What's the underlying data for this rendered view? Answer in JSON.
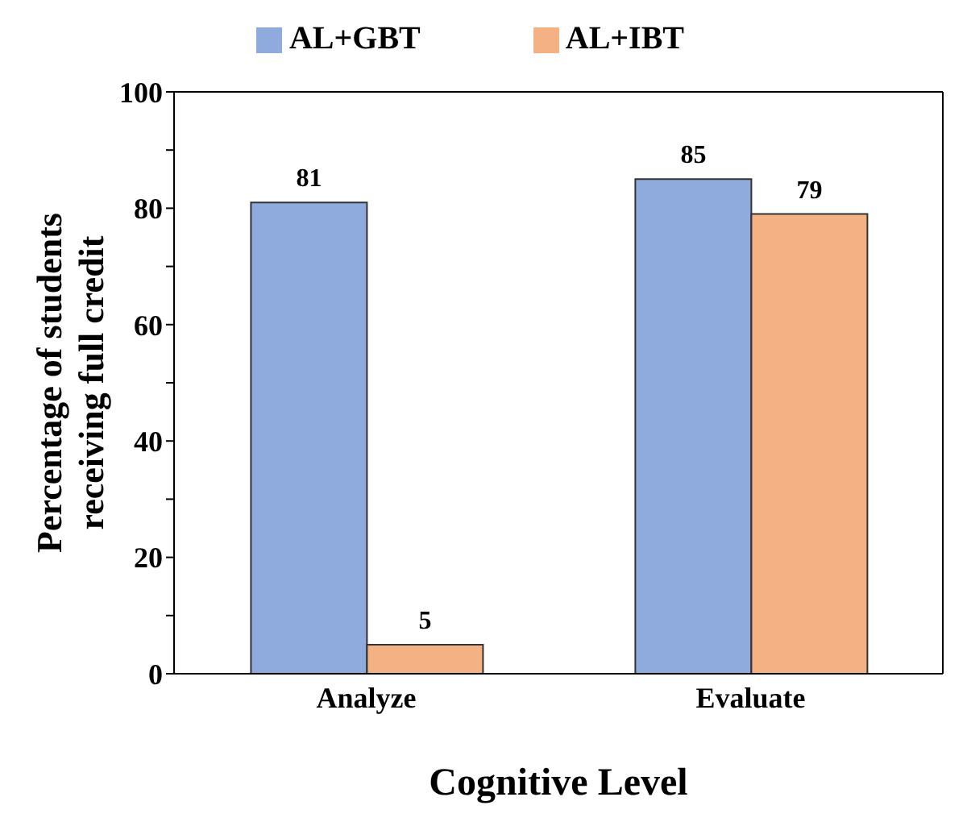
{
  "chart_data": {
    "type": "bar",
    "xlabel": "Cognitive Level",
    "ylabel": "Percentage of students receiving full credit",
    "categories": [
      "Analyze",
      "Evaluate"
    ],
    "series": [
      {
        "name": "AL+GBT",
        "color": "#8faadc",
        "values": [
          81,
          85
        ]
      },
      {
        "name": "AL+IBT",
        "color": "#f4b183",
        "values": [
          5,
          79
        ]
      }
    ],
    "ylim": [
      0,
      100
    ],
    "yticks": [
      0,
      {
        "value": 10,
        "label": null
      },
      20,
      {
        "value": 30,
        "label": null
      },
      40,
      {
        "value": 50,
        "label": null
      },
      60,
      {
        "value": 70,
        "label": null
      },
      80,
      {
        "value": 90,
        "label": null
      },
      100
    ],
    "data_labels": true,
    "grid": false,
    "legend": "top"
  }
}
